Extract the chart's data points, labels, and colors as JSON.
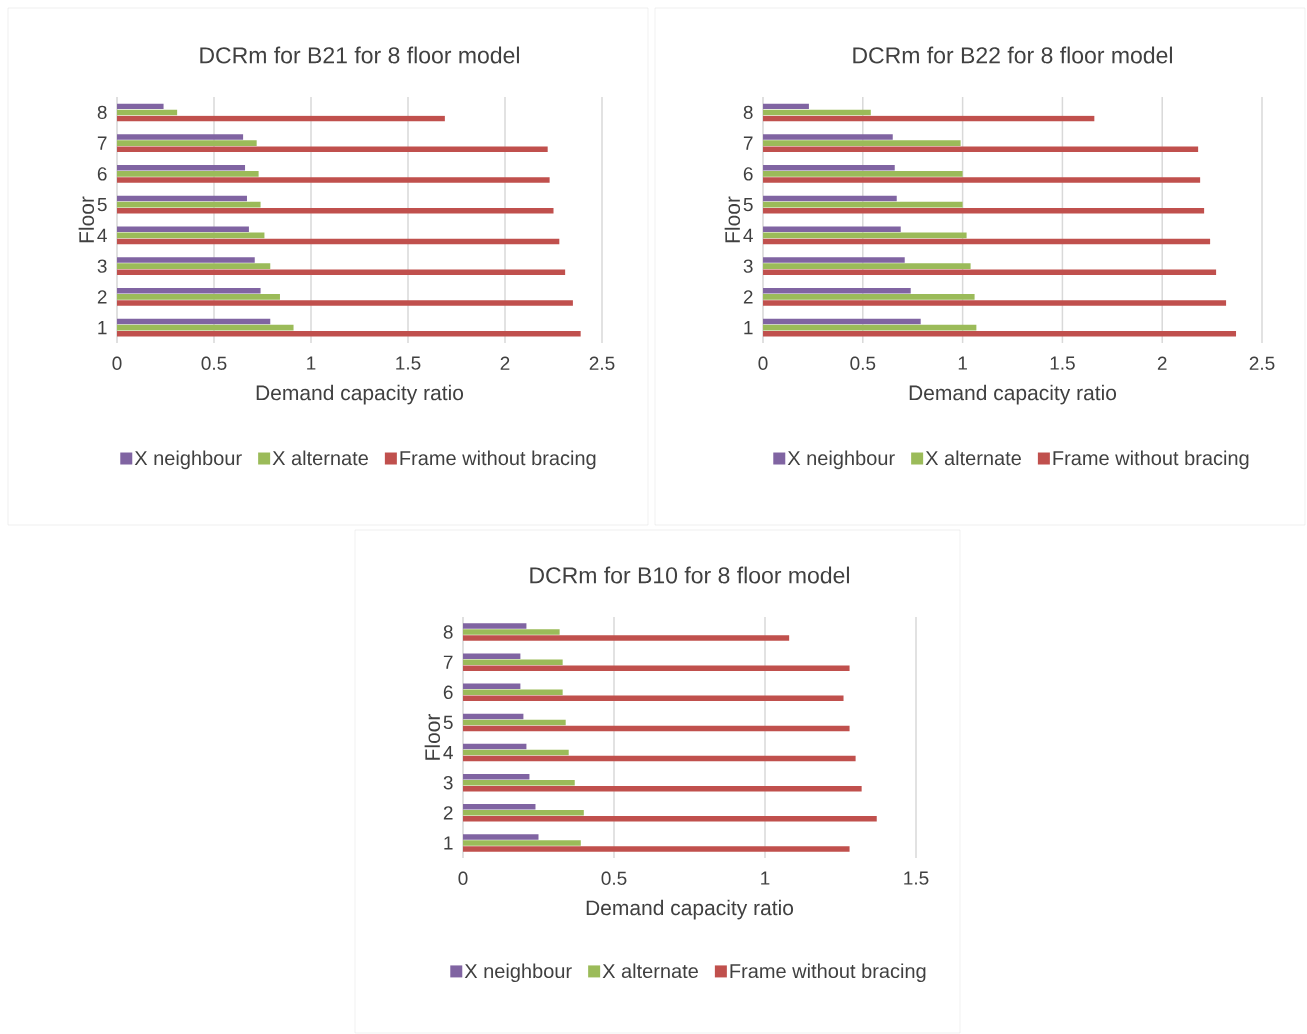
{
  "chart_data": [
    {
      "type": "bar",
      "orientation": "horizontal",
      "title": "DCRm for B21 for 8 floor model",
      "xlabel": "Demand capacity ratio",
      "ylabel": "Floor",
      "categories": [
        "8",
        "7",
        "6",
        "5",
        "4",
        "3",
        "2",
        "1"
      ],
      "xlim": [
        0,
        2.5
      ],
      "xticks": [
        0,
        0.5,
        1,
        1.5,
        2,
        2.5
      ],
      "grid": "x",
      "legend": "bottom",
      "series": [
        {
          "name": "X neighbour",
          "color": "#8064a2",
          "values": [
            0.24,
            0.65,
            0.66,
            0.67,
            0.68,
            0.71,
            0.74,
            0.79
          ]
        },
        {
          "name": "X alternate",
          "color": "#9bbb59",
          "values": [
            0.31,
            0.72,
            0.73,
            0.74,
            0.76,
            0.79,
            0.84,
            0.91
          ]
        },
        {
          "name": "Frame without bracing",
          "color": "#c0504d",
          "values": [
            1.69,
            2.22,
            2.23,
            2.25,
            2.28,
            2.31,
            2.35,
            2.39
          ]
        }
      ]
    },
    {
      "type": "bar",
      "orientation": "horizontal",
      "title": "DCRm for B22 for 8 floor model",
      "xlabel": "Demand capacity ratio",
      "ylabel": "Floor",
      "categories": [
        "8",
        "7",
        "6",
        "5",
        "4",
        "3",
        "2",
        "1"
      ],
      "xlim": [
        0,
        2.5
      ],
      "xticks": [
        0,
        0.5,
        1,
        1.5,
        2,
        2.5
      ],
      "grid": "x",
      "legend": "bottom",
      "series": [
        {
          "name": "X neighbour",
          "color": "#8064a2",
          "values": [
            0.23,
            0.65,
            0.66,
            0.67,
            0.69,
            0.71,
            0.74,
            0.79
          ]
        },
        {
          "name": "X alternate",
          "color": "#9bbb59",
          "values": [
            0.54,
            0.99,
            1.0,
            1.0,
            1.02,
            1.04,
            1.06,
            1.07
          ]
        },
        {
          "name": "Frame without bracing",
          "color": "#c0504d",
          "values": [
            1.66,
            2.18,
            2.19,
            2.21,
            2.24,
            2.27,
            2.32,
            2.37
          ]
        }
      ]
    },
    {
      "type": "bar",
      "orientation": "horizontal",
      "title": "DCRm for B10 for 8 floor model",
      "xlabel": "Demand capacity ratio",
      "ylabel": "Floor",
      "categories": [
        "8",
        "7",
        "6",
        "5",
        "4",
        "3",
        "2",
        "1"
      ],
      "xlim": [
        0,
        1.5
      ],
      "xticks": [
        0,
        0.5,
        1,
        1.5
      ],
      "grid": "x",
      "legend": "bottom",
      "series": [
        {
          "name": "X neighbour",
          "color": "#8064a2",
          "values": [
            0.21,
            0.19,
            0.19,
            0.2,
            0.21,
            0.22,
            0.24,
            0.25
          ]
        },
        {
          "name": "X alternate",
          "color": "#9bbb59",
          "values": [
            0.32,
            0.33,
            0.33,
            0.34,
            0.35,
            0.37,
            0.4,
            0.39
          ]
        },
        {
          "name": "Frame without bracing",
          "color": "#c0504d",
          "values": [
            1.08,
            1.28,
            1.26,
            1.28,
            1.3,
            1.32,
            1.37,
            1.28
          ]
        }
      ]
    }
  ]
}
